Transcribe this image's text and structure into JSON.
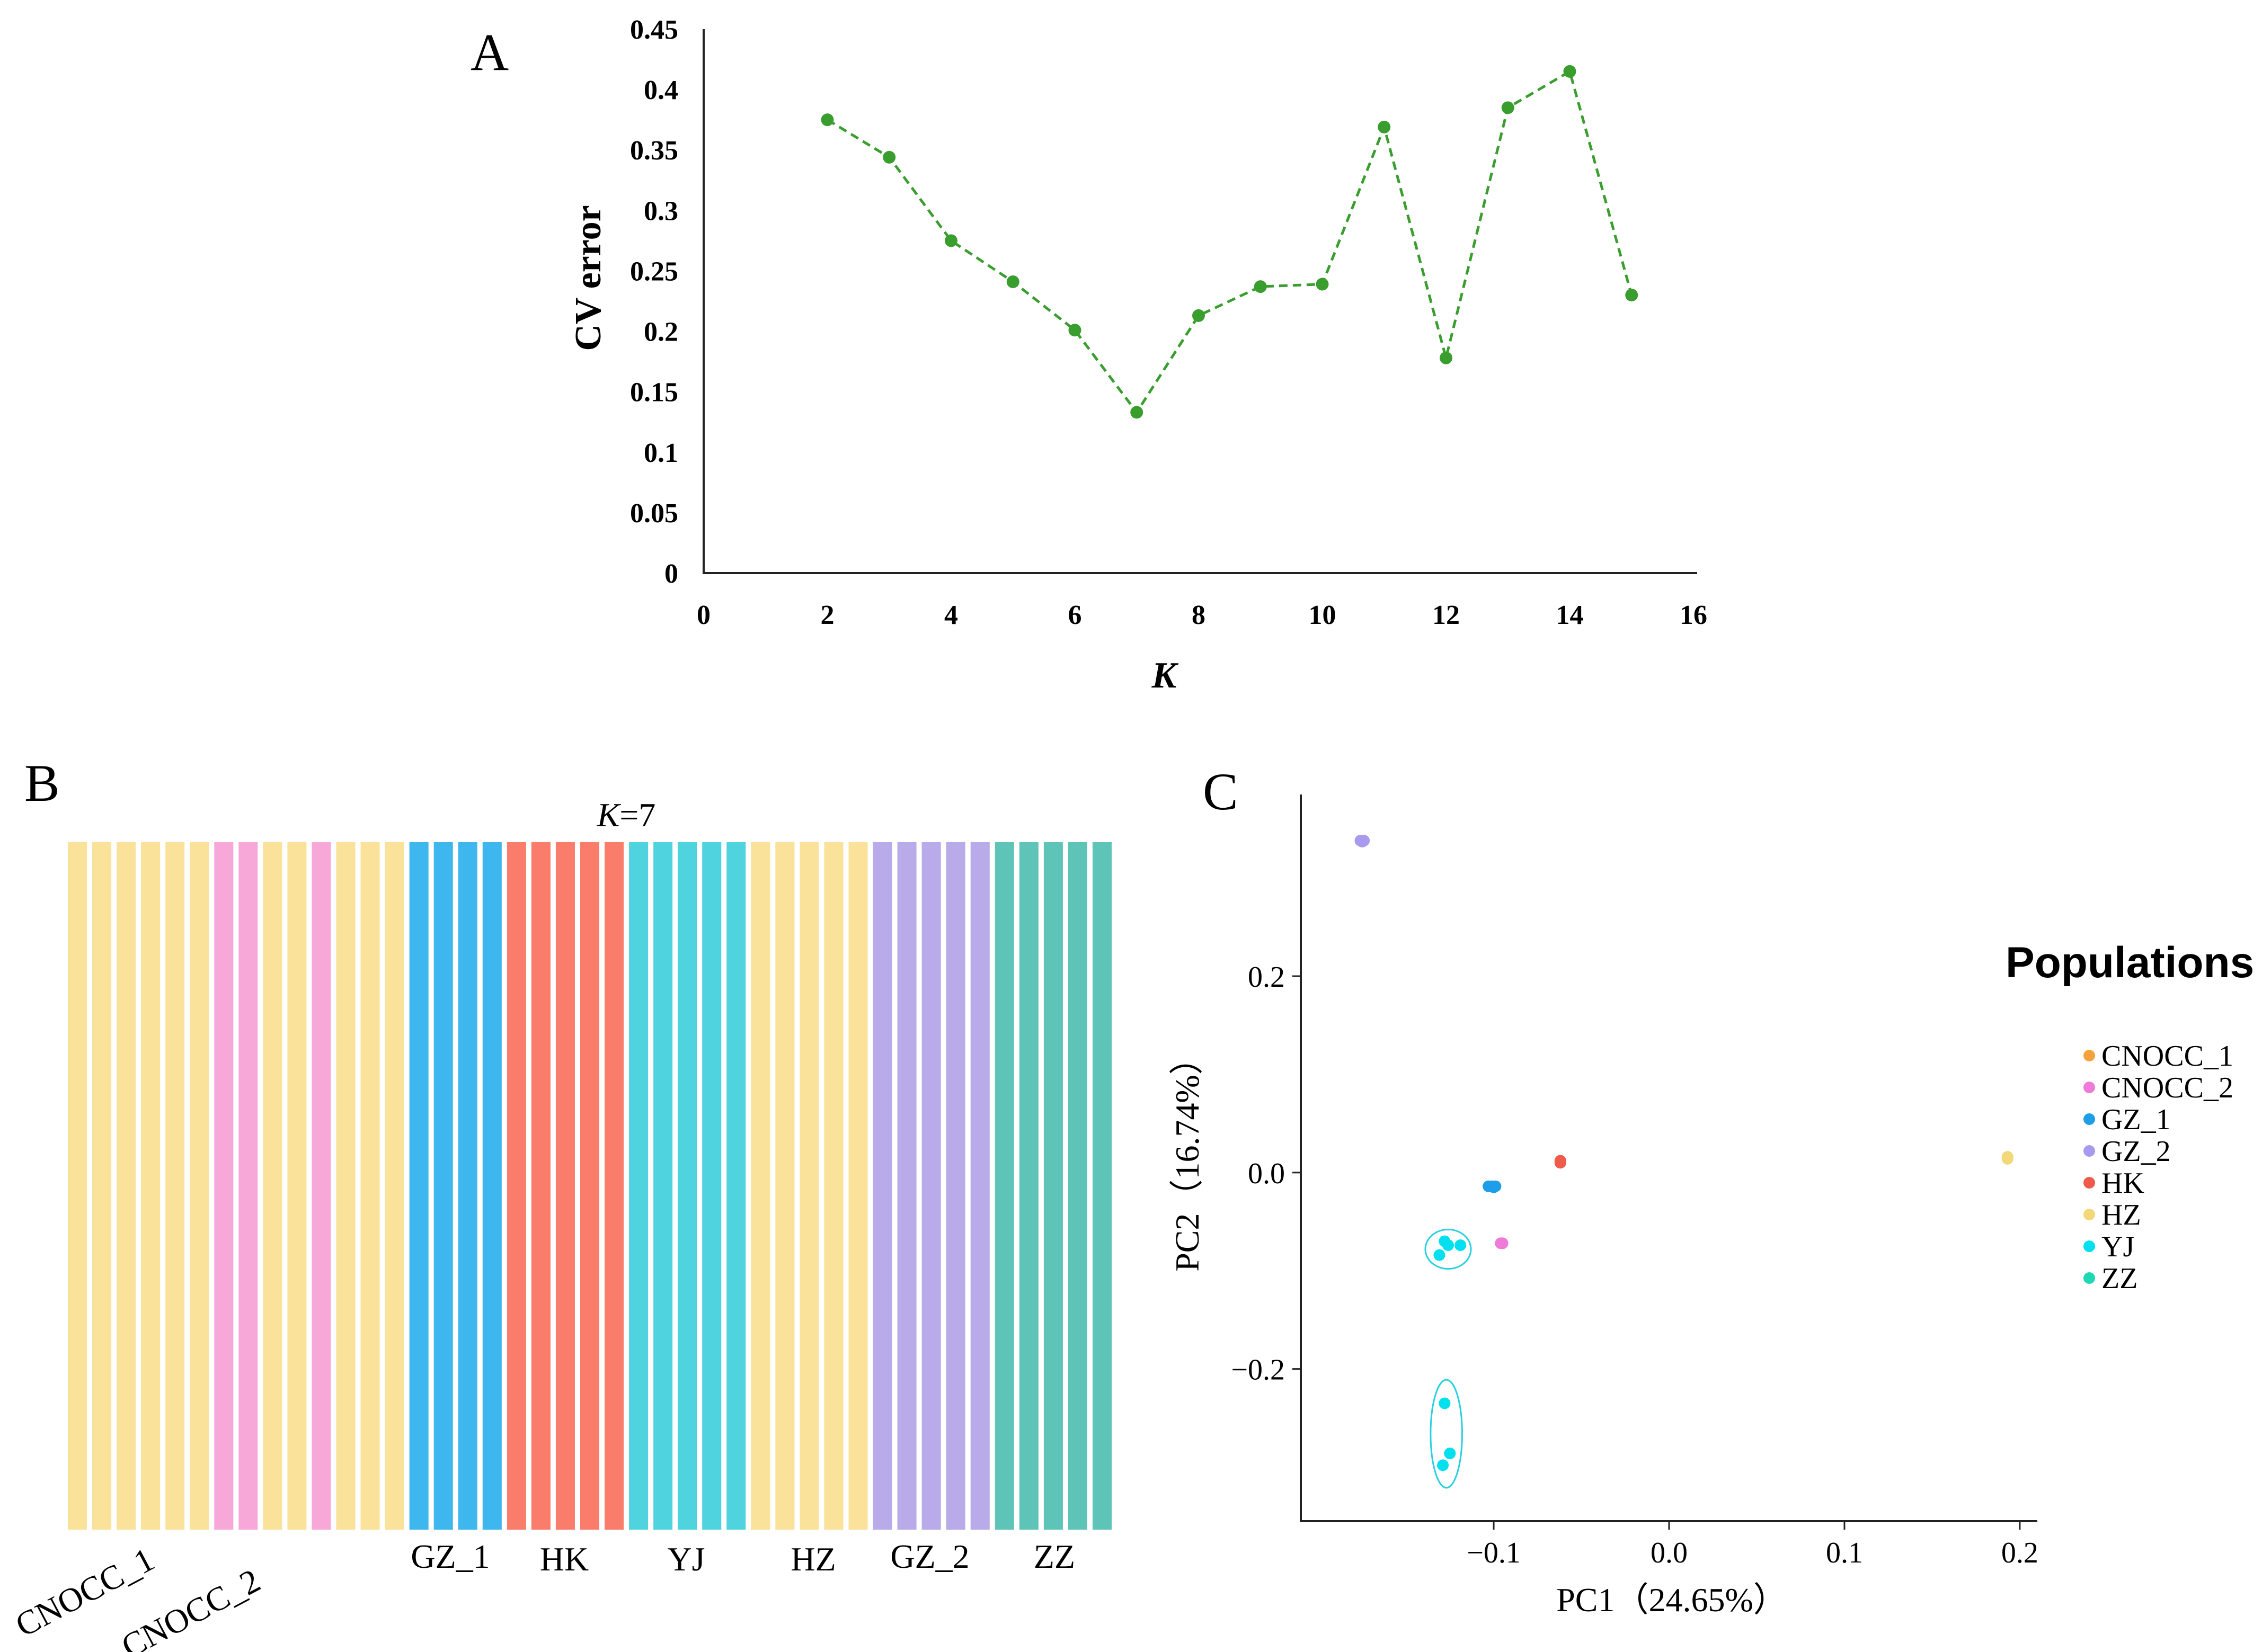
{
  "panel_labels": {
    "a": "A",
    "b": "B",
    "c": "C"
  },
  "chart_data": [
    {
      "type": "line",
      "panel": "A",
      "xlabel": "K",
      "ylabel": "CV error",
      "xlim": [
        0,
        16
      ],
      "ylim": [
        0,
        0.45
      ],
      "x_ticks": [
        "0",
        "2",
        "4",
        "6",
        "8",
        "10",
        "12",
        "14",
        "16"
      ],
      "y_ticks": [
        "0",
        "0.05",
        "0.1",
        "0.15",
        "0.2",
        "0.25",
        "0.3",
        "0.35",
        "0.4",
        "0.45"
      ],
      "color": "#3a9e2f",
      "line_style": "dashed",
      "grid": false,
      "x": [
        2,
        3,
        4,
        5,
        6,
        7,
        8,
        9,
        10,
        11,
        12,
        13,
        14,
        15
      ],
      "y": [
        0.375,
        0.344,
        0.275,
        0.241,
        0.201,
        0.133,
        0.213,
        0.237,
        0.239,
        0.369,
        0.178,
        0.385,
        0.415,
        0.23
      ]
    },
    {
      "type": "bar",
      "panel": "B",
      "title_prefix": "K",
      "title_suffix": "=7",
      "stacked": true,
      "ylim": [
        0,
        1
      ],
      "value_per_bar": 1,
      "colors": {
        "yellow": "#fae29a",
        "pink": "#f7a8d8",
        "blue": "#3eb6ee",
        "red": "#fa7d6c",
        "cyan": "#4fd3de",
        "purple": "#b9abea",
        "teal": "#5ec4b8"
      },
      "bars": [
        "yellow",
        "yellow",
        "yellow",
        "yellow",
        "yellow",
        "yellow",
        "pink",
        "pink",
        "yellow",
        "yellow",
        "pink",
        "yellow",
        "yellow",
        "yellow",
        "blue",
        "blue",
        "blue",
        "blue",
        "red",
        "red",
        "red",
        "red",
        "red",
        "cyan",
        "cyan",
        "cyan",
        "cyan",
        "cyan",
        "yellow",
        "yellow",
        "yellow",
        "yellow",
        "yellow",
        "purple",
        "purple",
        "purple",
        "purple",
        "purple",
        "teal",
        "teal",
        "teal",
        "teal",
        "teal"
      ],
      "group_labels": [
        "CNOCC_1",
        "CNOCC_2",
        "GZ_1",
        "HK",
        "YJ",
        "HZ",
        "GZ_2",
        "ZZ"
      ]
    },
    {
      "type": "scatter",
      "panel": "C",
      "xlabel": "PC1（24.65%）",
      "ylabel": "PC2（16.74%）",
      "xlim": [
        -0.21,
        0.21
      ],
      "ylim": [
        -0.355,
        0.385
      ],
      "x_ticks": [
        -0.1,
        0.0,
        0.1,
        0.2
      ],
      "x_tick_labels": [
        "−0.1",
        "0.0",
        "0.1",
        "0.2"
      ],
      "y_ticks": [
        -0.2,
        0.0,
        0.2
      ],
      "y_tick_labels": [
        "−0.2",
        "0.0",
        "0.2"
      ],
      "legend_title": "Populations",
      "legend_position": "right",
      "series": [
        {
          "name": "CNOCC_1",
          "color": "#f5a23c",
          "points": []
        },
        {
          "name": "CNOCC_2",
          "color": "#f07ad8",
          "points": [
            [
              -0.096,
              -0.072
            ],
            [
              -0.095,
              -0.072
            ]
          ]
        },
        {
          "name": "GZ_1",
          "color": "#1e9ee8",
          "points": [
            [
              -0.103,
              -0.014
            ],
            [
              -0.101,
              -0.014
            ],
            [
              -0.099,
              -0.014
            ],
            [
              -0.1,
              -0.015
            ]
          ]
        },
        {
          "name": "GZ_2",
          "color": "#a99af0",
          "points": [
            [
              -0.176,
              0.338
            ],
            [
              -0.174,
              0.338
            ],
            [
              -0.175,
              0.337
            ]
          ]
        },
        {
          "name": "HK",
          "color": "#f05a4a",
          "points": [
            [
              -0.062,
              0.012
            ],
            [
              -0.062,
              0.01
            ]
          ]
        },
        {
          "name": "HZ",
          "color": "#f2d878",
          "points": [
            [
              0.193,
              0.016
            ],
            [
              0.193,
              0.014
            ]
          ]
        },
        {
          "name": "YJ",
          "color": "#00e0ee",
          "points": [
            [
              -0.128,
              -0.07
            ],
            [
              -0.126,
              -0.074
            ],
            [
              -0.119,
              -0.074
            ],
            [
              -0.131,
              -0.084
            ],
            [
              -0.128,
              -0.235
            ],
            [
              -0.125,
              -0.286
            ],
            [
              -0.129,
              -0.298
            ]
          ]
        },
        {
          "name": "ZZ",
          "color": "#1ed8b4",
          "points": []
        }
      ],
      "ellipses": [
        {
          "color": "#28d0e0",
          "cx": -0.126,
          "cy": -0.078,
          "rx": 0.013,
          "ry": 0.02
        },
        {
          "color": "#28d0e0",
          "cx": -0.127,
          "cy": -0.266,
          "rx": 0.009,
          "ry": 0.055
        }
      ]
    }
  ]
}
